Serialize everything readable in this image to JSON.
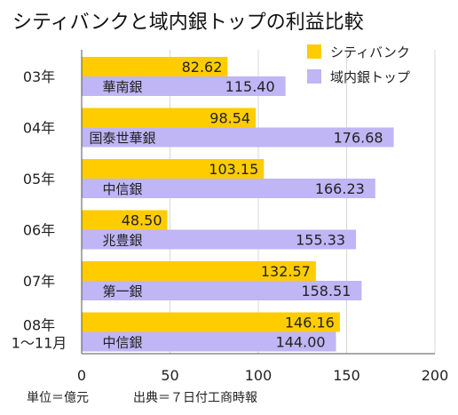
{
  "chart_data": {
    "type": "bar",
    "orientation": "horizontal",
    "title": "シティバンクと域内銀トップの利益比較",
    "categories": [
      "03年",
      "04年",
      "05年",
      "06年",
      "07年",
      "08年 1〜11月"
    ],
    "category_lines": [
      [
        "03年"
      ],
      [
        "04年"
      ],
      [
        "05年"
      ],
      [
        "06年"
      ],
      [
        "07年"
      ],
      [
        "08年",
        "1〜11月"
      ]
    ],
    "series": [
      {
        "name": "シティバンク",
        "color": "#ffcc00",
        "values": [
          82.62,
          98.54,
          103.15,
          48.5,
          132.57,
          146.16
        ],
        "value_labels": [
          "82.62",
          "98.54",
          "103.15",
          "48.50",
          "132.57",
          "146.16"
        ]
      },
      {
        "name": "域内銀トップ",
        "color": "#c0b5f5",
        "values": [
          115.4,
          176.68,
          166.23,
          155.33,
          158.51,
          144.0
        ],
        "value_labels": [
          "115.40",
          "176.68",
          "166.23",
          "155.33",
          "158.51",
          "144.00"
        ],
        "bank_names": [
          "華南銀",
          "国泰世華銀",
          "中信銀",
          "兆豊銀",
          "第一銀",
          "中信銀"
        ]
      }
    ],
    "xlim": [
      0,
      200
    ],
    "xticks": [
      0,
      50,
      100,
      150,
      200
    ],
    "xtick_labels": [
      "0",
      "50",
      "100",
      "150",
      "200"
    ],
    "legend_position": "top-right",
    "grid": true
  },
  "footer": {
    "unit": "単位＝億元",
    "source": "出典＝７日付工商時報"
  }
}
